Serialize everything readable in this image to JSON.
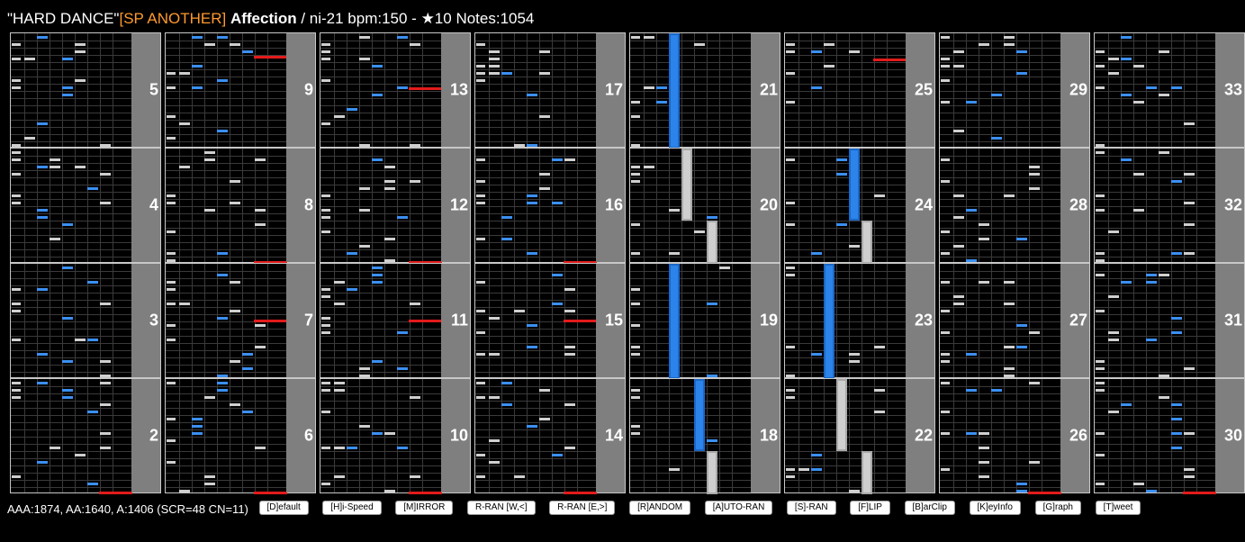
{
  "header": {
    "genre": "\"HARD DANCE\"",
    "difficulty": "[SP ANOTHER]",
    "title": "Affection",
    "info": " / ni-21 bpm:150 - ★10 Notes:1054"
  },
  "colors": {
    "background": "#000000",
    "difficulty": "#ff9a2e",
    "white_key_note": "#cfcfcf",
    "black_key_note": "#3b8ff0",
    "scratch_note": "#e21b1b",
    "measure_gutter": "#7f7f7f"
  },
  "columns": [
    {
      "measures": [
        "5",
        "4",
        "3",
        "2"
      ]
    },
    {
      "measures": [
        "9",
        "8",
        "7",
        "6"
      ]
    },
    {
      "measures": [
        "13",
        "12",
        "11",
        "10"
      ]
    },
    {
      "measures": [
        "17",
        "16",
        "15",
        "14"
      ]
    },
    {
      "measures": [
        "21",
        "20",
        "19",
        "18"
      ]
    },
    {
      "measures": [
        "25",
        "24",
        "23",
        "22"
      ]
    },
    {
      "measures": [
        "29",
        "28",
        "27",
        "26"
      ]
    },
    {
      "measures": [
        "33",
        "32",
        "31",
        "30"
      ]
    }
  ],
  "footer": {
    "stats": "AAA:1874, AA:1640, A:1406 (SCR=48 CN=11)",
    "buttons": [
      "[D]efault",
      "[H]i-Speed",
      "[M]IRROR",
      "R-RAN [W,<]",
      "R-RAN [E,>]",
      "[R]ANDOM",
      "[A]UTO-RAN",
      "[S]-RAN",
      "[F]LIP",
      "[B]arClip",
      "[K]eyInfo",
      "[G]raph",
      "[T]weet"
    ]
  }
}
